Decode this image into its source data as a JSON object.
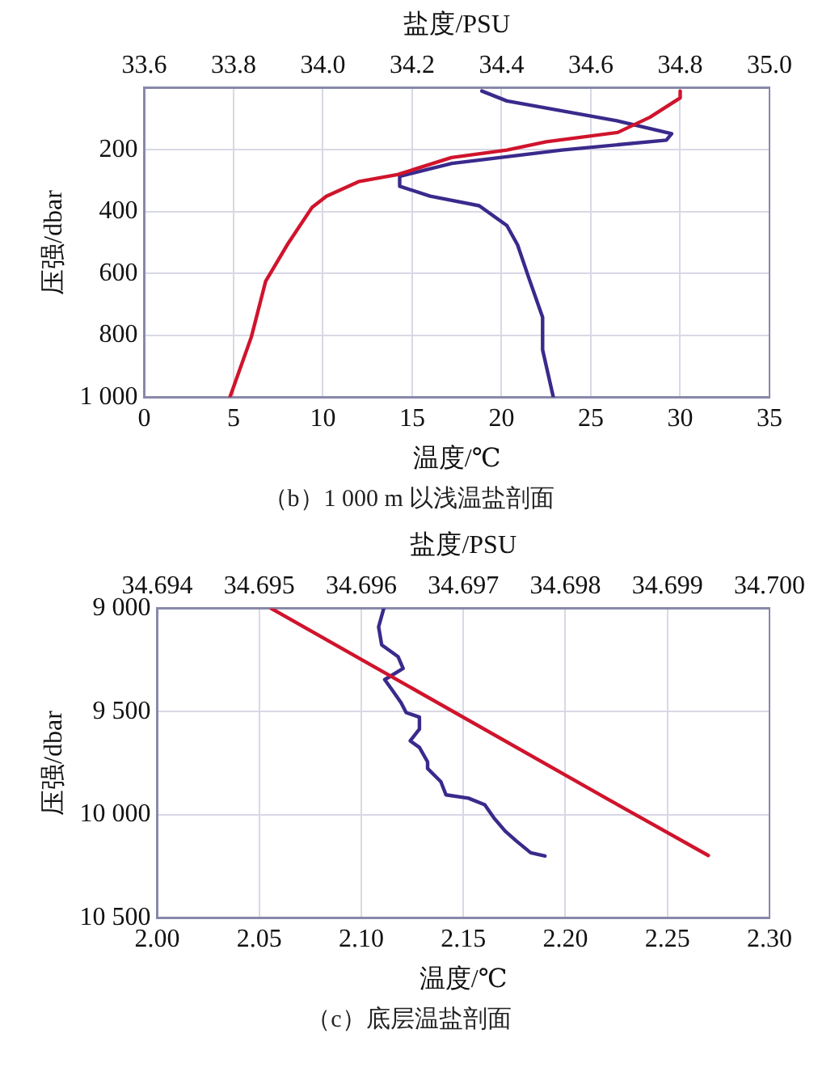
{
  "chart_data": [
    {
      "type": "line",
      "xlabel": "温度/℃",
      "x2label": "盐度/PSU",
      "ylabel": "压强/dbar",
      "xlim": [
        0,
        35
      ],
      "xticks": [
        0,
        5,
        10,
        15,
        20,
        25,
        30,
        35
      ],
      "x2lim": [
        33.6,
        35.0
      ],
      "x2ticks": [
        33.6,
        33.8,
        {
          "value": 34.0,
          "label": "34.0"
        },
        34.2,
        34.4,
        34.6,
        34.8,
        {
          "value": 35.0,
          "label": "35.0"
        }
      ],
      "ylim": [
        1000,
        0
      ],
      "yticks": [
        200,
        400,
        600,
        800,
        {
          "value": 1000,
          "label": "1 000"
        }
      ],
      "grid": true,
      "legend": false,
      "series": [
        {
          "color": "#d0142c",
          "x": [
            30.0,
            30.0,
            28.3,
            26.5,
            22.5,
            20.3,
            17.2,
            14.2,
            12.0,
            10.2,
            9.4,
            8.0,
            6.8,
            6.0,
            4.8
          ],
          "values": [
            10,
            32,
            95,
            144,
            174,
            201,
            225,
            280,
            303,
            350,
            386,
            508,
            625,
            805,
            1000
          ]
        },
        {
          "color": "#3a2a8c",
          "axis": "x2",
          "x": [
            34.356,
            34.412,
            34.658,
            34.781,
            34.769,
            34.535,
            34.289,
            34.172,
            34.172,
            34.24,
            34.35,
            34.412,
            34.436,
            34.461,
            34.492,
            34.492,
            34.516
          ],
          "values": [
            10,
            42,
            106,
            148,
            169,
            201,
            244,
            286,
            318,
            350,
            381,
            445,
            508,
            614,
            742,
            847,
            1000
          ]
        }
      ],
      "annotations": [
        "（b）1 000 m 以浅温盐剖面"
      ]
    },
    {
      "type": "line",
      "xlabel": "温度/℃",
      "x2label": "盐度/PSU",
      "ylabel": "压强/dbar",
      "xlim": [
        2.0,
        2.3
      ],
      "xticks": [
        {
          "value": 2.0,
          "label": "2.00"
        },
        2.05,
        {
          "value": 2.1,
          "label": "2.10"
        },
        2.15,
        {
          "value": 2.2,
          "label": "2.20"
        },
        2.25,
        {
          "value": 2.3,
          "label": "2.30"
        }
      ],
      "x2lim": [
        34.694,
        34.7
      ],
      "x2ticks": [
        34.694,
        34.695,
        34.696,
        34.697,
        34.698,
        34.699,
        {
          "value": 34.7,
          "label": "34.700"
        }
      ],
      "ylim": [
        10500,
        9000
      ],
      "yticks": [
        {
          "value": 9000,
          "label": "9 000"
        },
        {
          "value": 9500,
          "label": "9 500"
        },
        {
          "value": 10000,
          "label": "10 000"
        },
        {
          "value": 10500,
          "label": "10 500"
        }
      ],
      "grid": true,
      "legend": false,
      "series": [
        {
          "color": "#d0142c",
          "x": [
            2.056,
            2.221,
            2.27
          ],
          "values": [
            9000,
            9926,
            10198
          ]
        },
        {
          "color": "#3a2a8c",
          "axis": "x2",
          "x": [
            34.69622,
            34.69617,
            34.6962,
            34.69636,
            34.69641,
            34.69623,
            34.6963,
            34.69639,
            34.69644,
            34.69657,
            34.69657,
            34.69648,
            34.69657,
            34.69665,
            34.69665,
            34.69678,
            34.69683,
            34.69705,
            34.69721,
            34.6973,
            34.69741,
            34.69752,
            34.69766,
            34.6978
          ],
          "values": [
            9000,
            9089,
            9176,
            9233,
            9291,
            9345,
            9393,
            9457,
            9505,
            9527,
            9585,
            9642,
            9674,
            9744,
            9776,
            9840,
            9904,
            9920,
            9952,
            10016,
            10080,
            10128,
            10185,
            10201
          ]
        }
      ],
      "annotations": [
        "（c）底层温盐剖面"
      ]
    }
  ]
}
